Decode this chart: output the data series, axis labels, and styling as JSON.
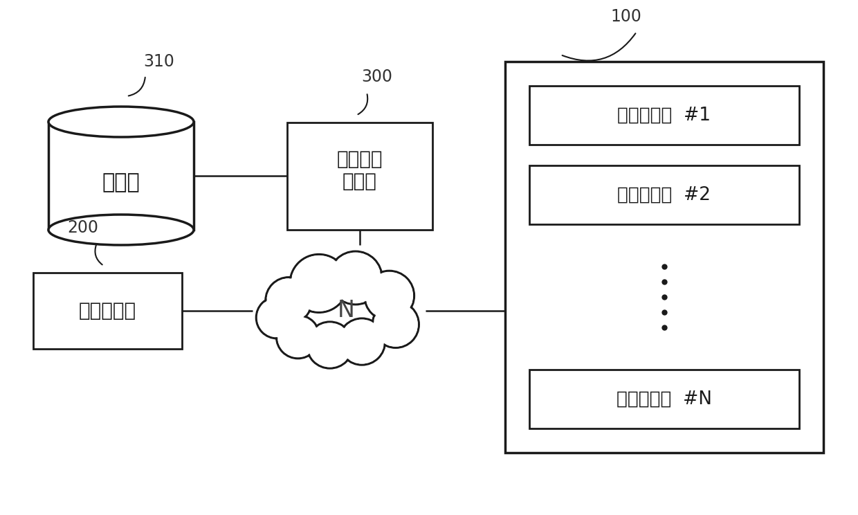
{
  "bg_color": "#ffffff",
  "line_color": "#1a1a1a",
  "box_fill": "#ffffff",
  "box_edge": "#1a1a1a",
  "label_310": "310",
  "label_300": "300",
  "label_200": "200",
  "label_100": "100",
  "db_label": "数据库",
  "server_label": "中央管理\n服务器",
  "admin_label": "管理员终端",
  "network_label": "N",
  "boiler1_label": "物联网锅炉  #1",
  "boiler2_label": "物联网锅炉  #2",
  "boilerN_label": "物联网锅炉  #N"
}
